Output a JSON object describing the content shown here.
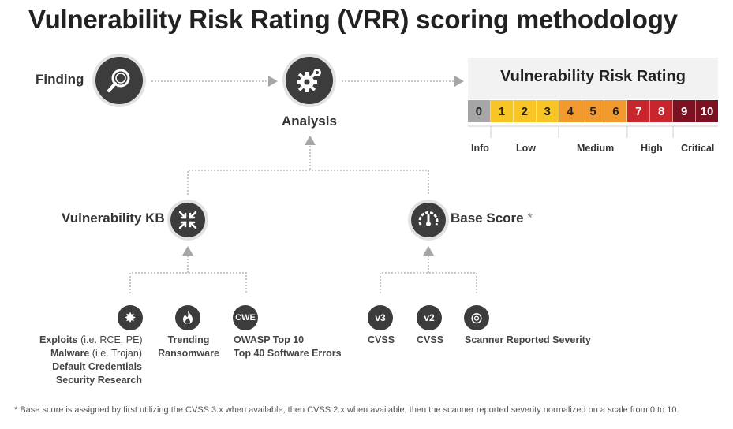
{
  "title": "Vulnerability Risk Rating (VRR) scoring methodology",
  "finding_label": "Finding",
  "analysis_label": "Analysis",
  "rating": {
    "title": "Vulnerability Risk Rating",
    "scale": [
      {
        "value": "0",
        "color": "#a6a6a6"
      },
      {
        "value": "1",
        "color": "#f7c525"
      },
      {
        "value": "2",
        "color": "#f7c525"
      },
      {
        "value": "3",
        "color": "#f7c525"
      },
      {
        "value": "4",
        "color": "#f29a2e"
      },
      {
        "value": "5",
        "color": "#f29a2e"
      },
      {
        "value": "6",
        "color": "#f29a2e"
      },
      {
        "value": "7",
        "color": "#c9252c"
      },
      {
        "value": "8",
        "color": "#c9252c"
      },
      {
        "value": "9",
        "color": "#7a1020"
      },
      {
        "value": "10",
        "color": "#7a1020"
      }
    ],
    "bands": [
      "Info",
      "Low",
      "Medium",
      "High",
      "Critical"
    ]
  },
  "vuln_kb": {
    "label": "Vulnerability KB",
    "items": [
      {
        "icon_glyph": "✸",
        "lines": [
          {
            "bold": "Exploits",
            "light": " (i.e. RCE, PE)"
          },
          {
            "bold": "Malware",
            "light": " (i.e. Trojan)"
          },
          {
            "bold": "Default Credentials",
            "light": ""
          },
          {
            "bold": "Security Research",
            "light": ""
          }
        ]
      },
      {
        "icon_glyph": "🔥",
        "lines": [
          "Trending",
          "Ransomware"
        ]
      },
      {
        "icon_glyph": "CWE",
        "lines": [
          "OWASP Top 10",
          "Top 40 Software Errors"
        ]
      }
    ]
  },
  "base_score": {
    "label": "Base Score",
    "asterisk": "*",
    "items": [
      {
        "icon_glyph": "v3",
        "label": "CVSS"
      },
      {
        "icon_glyph": "v2",
        "label": "CVSS"
      },
      {
        "icon_glyph": "⊚",
        "label": "Scanner Reported Severity"
      }
    ]
  },
  "footnote": "* Base score is assigned by first utilizing the CVSS 3.x when available, then CVSS 2.x when available, then the scanner reported severity normalized on a scale from 0 to 10."
}
